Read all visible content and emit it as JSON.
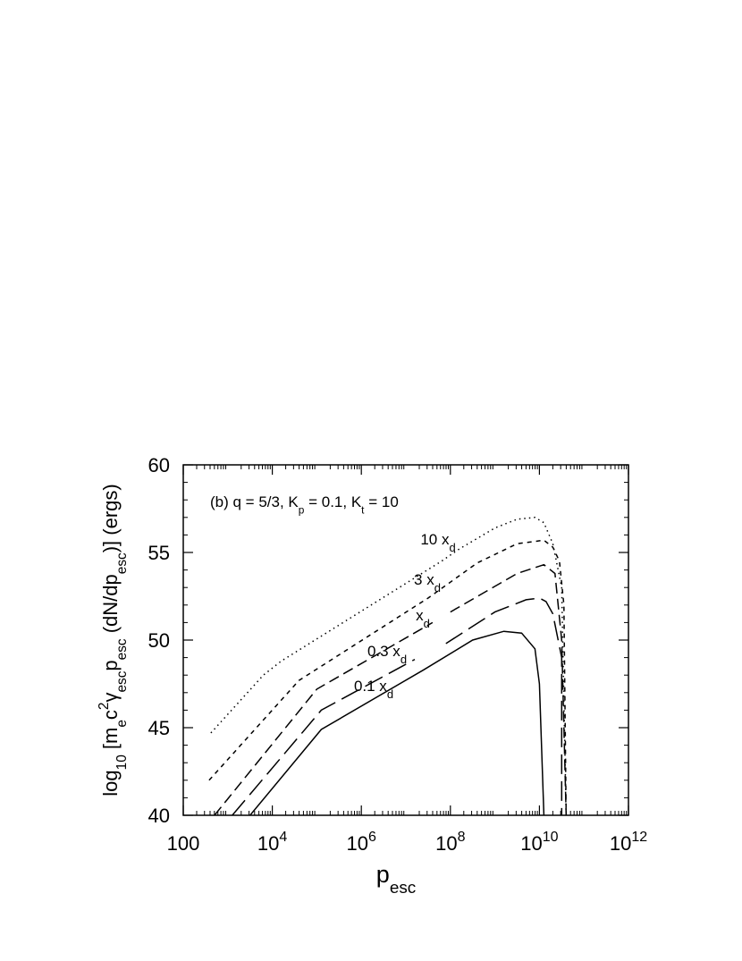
{
  "chart_data": {
    "type": "line",
    "annotation": [
      {
        "text": "(b)   q = 5/3,  K"
      },
      {
        "text": "p",
        "sub": true
      },
      {
        "text": " = 0.1,  K"
      },
      {
        "text": "t",
        "sub": true
      },
      {
        "text": " = 10"
      }
    ],
    "xlabel": [
      {
        "text": "p"
      },
      {
        "text": "esc",
        "sub": true
      }
    ],
    "ylabel": [
      {
        "text": "log"
      },
      {
        "text": "10",
        "sub": true
      },
      {
        "text": " [m"
      },
      {
        "text": "e",
        "sub": true
      },
      {
        "text": "c"
      },
      {
        "text": "2",
        "sup": true
      },
      {
        "text": "γ"
      },
      {
        "text": "esc",
        "sub": true
      },
      {
        "text": "p"
      },
      {
        "text": "esc",
        "sub": true
      },
      {
        "text": " (dN/dp"
      },
      {
        "text": "esc",
        "sub": true
      },
      {
        "text": ")]  (ergs)"
      }
    ],
    "xscale": "log",
    "xlim": [
      100,
      1000000000000
    ],
    "ylim": [
      40,
      60
    ],
    "xticks": [
      100,
      {
        "value": 10000,
        "label": "10",
        "sup": "4"
      },
      {
        "value": 1000000,
        "label": "10",
        "sup": "6"
      },
      {
        "value": 100000000,
        "label": "10",
        "sup": "8"
      },
      {
        "value": 10000000000,
        "label": "10",
        "sup": "10"
      },
      {
        "value": 1000000000000,
        "label": "10",
        "sup": "12"
      }
    ],
    "yticks": [
      40,
      45,
      50,
      55,
      60
    ],
    "series": [
      {
        "name": "10 x",
        "name_sub": "d",
        "color": "#000000",
        "dash": "1.5 4",
        "x": [
          417,
          6310,
          15850,
          63100000,
          158500000,
          1000000000,
          3160000000,
          7940000000,
          12600000000,
          20000000000,
          31600000000,
          39800000000
        ],
        "values": [
          44.7,
          48,
          48.8,
          54.5,
          55.2,
          56.4,
          56.9,
          57.0,
          56.7,
          55.5,
          53,
          40
        ]
      },
      {
        "name": "3 x",
        "name_sub": "d",
        "color": "#000000",
        "dash": "5 5",
        "x": [
          380,
          39800,
          31600000,
          398000000,
          3160000000,
          12600000000,
          20000000000,
          28200000000,
          35500000000,
          39800000000
        ],
        "values": [
          42,
          47.7,
          52.4,
          54.4,
          55.5,
          55.7,
          55.3,
          54.5,
          52,
          40
        ]
      },
      {
        "name": "x",
        "name_sub": "d",
        "color": "#000000",
        "dash": "12 6",
        "x": [
          501,
          100000,
          39800000,
          50100000,
          100000000,
          3160000000,
          12600000000,
          22400000000,
          31600000000,
          39800000000
        ],
        "values": [
          40,
          47.2,
          51,
          null,
          51.6,
          53.8,
          54.3,
          53.8,
          50,
          40
        ]
      },
      {
        "name": "0.3 x",
        "name_sub": "d",
        "color": "#000000",
        "dash": "22 8",
        "x": [
          1259,
          126000,
          15850000,
          31600000,
          79400000,
          1000000000,
          5010000000,
          10000000000,
          14100000000,
          20000000000,
          31600000000,
          31600000000
        ],
        "values": [
          40,
          46,
          48.9,
          null,
          49.8,
          51.6,
          52.3,
          52.4,
          52.2,
          51.5,
          49,
          40
        ]
      },
      {
        "name": "0.1 x",
        "name_sub": "d",
        "color": "#000000",
        "dash": "none",
        "x": [
          3162,
          126000,
          25100000,
          316000000,
          1585000000,
          3980000000,
          7940000000,
          10000000000,
          12600000000
        ],
        "values": [
          40,
          44.9,
          48.3,
          50,
          50.5,
          50.4,
          49.5,
          47.5,
          40
        ]
      }
    ]
  }
}
